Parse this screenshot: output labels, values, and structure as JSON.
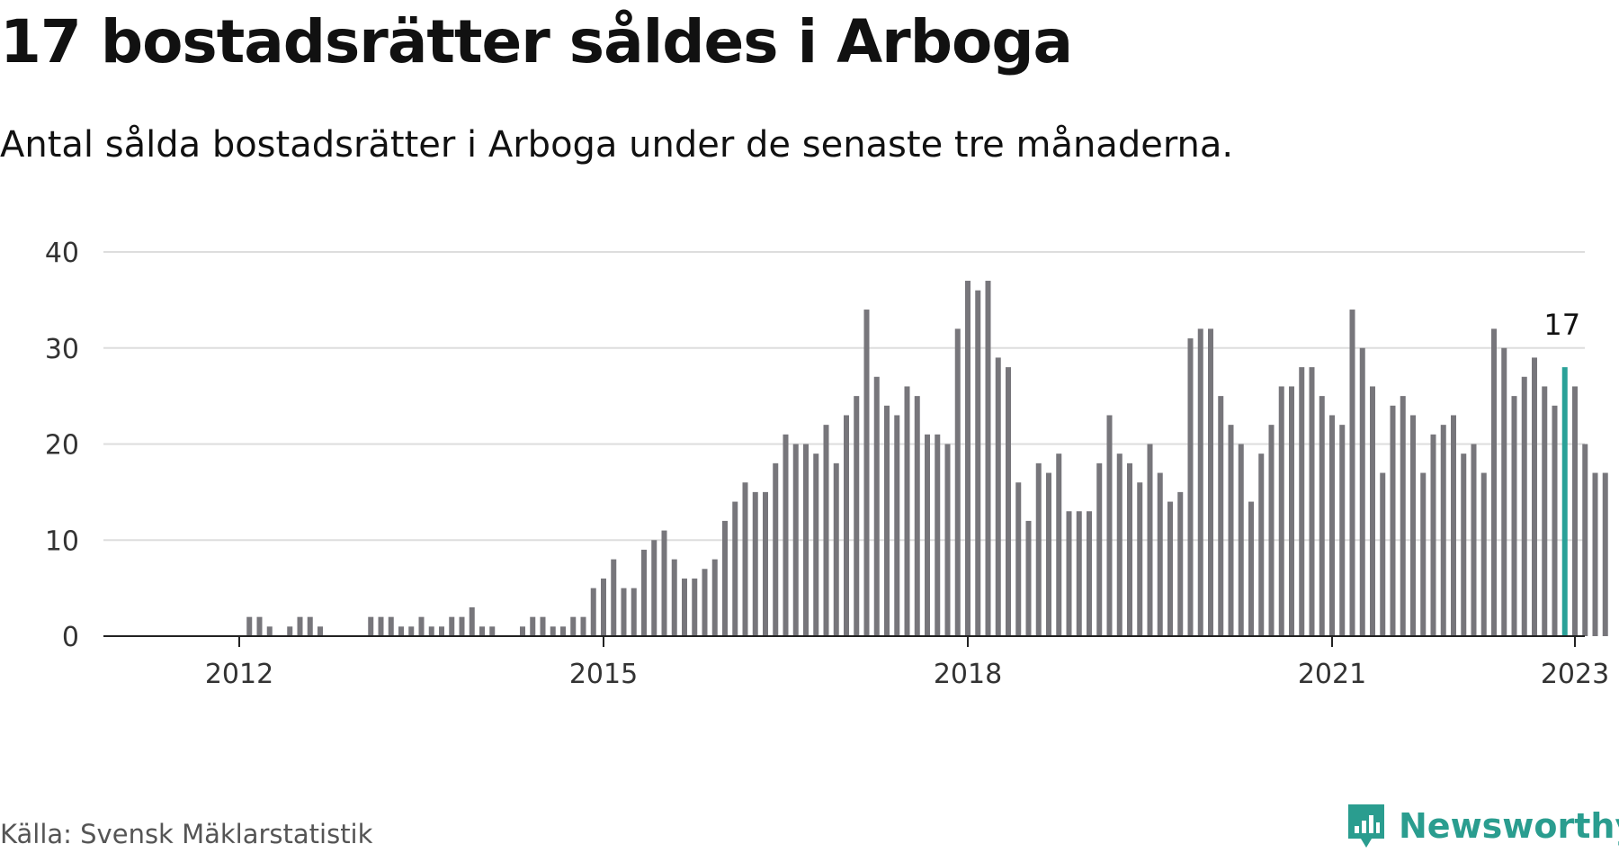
{
  "header": {
    "title": "17 bostadsrätter såldes i Arboga",
    "subtitle": "Antal sålda bostadsrätter i Arboga under de senaste tre månaderna."
  },
  "footer": {
    "source": "Källa: Svensk Mäklarstatistik",
    "brand": "Newsworthy",
    "brand_icon": "newsworthy-logo-icon"
  },
  "colors": {
    "bar": "#77767b",
    "highlight": "#2aa198",
    "grid": "#dddddd",
    "axis": "#222222",
    "brand": "#2a9d8f"
  },
  "chart_data": {
    "type": "bar",
    "title": "17 bostadsrätter såldes i Arboga",
    "subtitle": "Antal sålda bostadsrätter i Arboga under de senaste tre månaderna.",
    "x_start": "2011-07",
    "x_interval": "month",
    "ylim": [
      0,
      40
    ],
    "yticks": [
      0,
      10,
      20,
      30,
      40
    ],
    "xticks": [
      "2012",
      "2015",
      "2018",
      "2021",
      "2023"
    ],
    "grid": true,
    "values": [
      0,
      0,
      0,
      0,
      0,
      0,
      0,
      2,
      2,
      1,
      0,
      1,
      2,
      2,
      1,
      0,
      0,
      0,
      0,
      2,
      2,
      2,
      1,
      1,
      2,
      1,
      1,
      2,
      2,
      3,
      1,
      1,
      0,
      0,
      1,
      2,
      2,
      1,
      1,
      2,
      2,
      5,
      6,
      8,
      5,
      5,
      9,
      10,
      11,
      8,
      6,
      6,
      7,
      8,
      12,
      14,
      16,
      15,
      15,
      18,
      21,
      20,
      20,
      19,
      22,
      18,
      23,
      25,
      34,
      27,
      24,
      23,
      26,
      25,
      21,
      21,
      20,
      32,
      37,
      36,
      37,
      29,
      28,
      16,
      12,
      18,
      17,
      19,
      13,
      13,
      13,
      18,
      23,
      19,
      18,
      16,
      20,
      17,
      14,
      15,
      31,
      32,
      32,
      25,
      22,
      20,
      14,
      19,
      22,
      26,
      26,
      28,
      28,
      25,
      23,
      22,
      34,
      30,
      26,
      17,
      24,
      25,
      23,
      17,
      21,
      22,
      23,
      19,
      20,
      17,
      32,
      30,
      25,
      27,
      29,
      26,
      24,
      28,
      26,
      20,
      17,
      17
    ],
    "highlight_index": 137,
    "highlight_label": "17"
  }
}
